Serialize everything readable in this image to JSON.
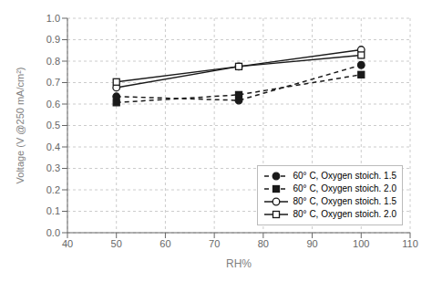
{
  "chart_data": {
    "type": "line",
    "x": [
      50,
      75,
      100
    ],
    "series": [
      {
        "name": "60° C, Oxygen stoich. 1.5",
        "color": "#1a1a1a",
        "marker": "circle",
        "line_style": "dashed",
        "values": [
          0.635,
          0.617,
          0.782
        ]
      },
      {
        "name": "60° C, Oxygen stoich. 2.0",
        "color": "#1a1a1a",
        "marker": "square",
        "line_style": "dashed",
        "values": [
          0.607,
          0.643,
          0.737
        ]
      },
      {
        "name": "80° C, Oxygen stoich. 1.5",
        "color": "#1a1a1a",
        "marker": "circle_open",
        "line_style": "solid",
        "values": [
          0.677,
          0.775,
          0.853
        ]
      },
      {
        "name": "80° C, Oxygen stoich. 2.0",
        "color": "#1a1a1a",
        "marker": "square_open",
        "line_style": "solid",
        "values": [
          0.703,
          0.775,
          0.828
        ]
      }
    ],
    "xlabel": "RH%",
    "ylabel": "Voltage  (V @250 mA/cm²)",
    "xlim": [
      40,
      110
    ],
    "ylim": [
      0,
      1.0
    ],
    "xticks": [
      40,
      50,
      60,
      70,
      80,
      90,
      100,
      110
    ],
    "yticks": [
      {
        "value": 0,
        "label": "0.0"
      },
      0.1,
      0.2,
      0.3,
      0.4,
      0.5,
      0.6,
      0.7,
      0.8,
      0.9,
      {
        "value": 1.0,
        "label": "1.0"
      }
    ],
    "grid": true,
    "legend": "lower right"
  }
}
